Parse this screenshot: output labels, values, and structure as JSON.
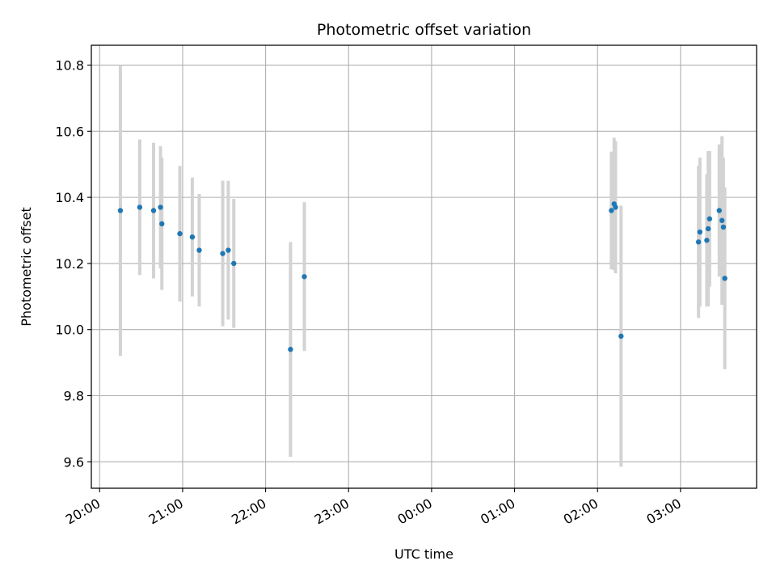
{
  "chart_data": {
    "type": "scatter",
    "title": "Photometric offset variation",
    "xlabel": "UTC time",
    "ylabel": "Photometric offset",
    "x_axis_type": "time",
    "xlim": [
      "19:54",
      "03:55"
    ],
    "ylim": [
      9.52,
      10.86
    ],
    "yticks": [
      9.6,
      9.8,
      10.0,
      10.2,
      10.4,
      10.6,
      10.8
    ],
    "xticks": [
      "20:00",
      "21:00",
      "22:00",
      "23:00",
      "00:00",
      "01:00",
      "02:00",
      "03:00"
    ],
    "grid": true,
    "legend": "none",
    "marker_color": "#1f77b4",
    "errorbar_color": "#d3d3d3",
    "series": [
      {
        "points": [
          {
            "x": "20:15",
            "y": 10.36,
            "err": 0.44
          },
          {
            "x": "20:29",
            "y": 10.37,
            "err": 0.205
          },
          {
            "x": "20:39",
            "y": 10.36,
            "err": 0.205
          },
          {
            "x": "20:44",
            "y": 10.37,
            "err": 0.185
          },
          {
            "x": "20:45",
            "y": 10.32,
            "err": 0.2
          },
          {
            "x": "20:58",
            "y": 10.29,
            "err": 0.205
          },
          {
            "x": "21:07",
            "y": 10.28,
            "err": 0.18
          },
          {
            "x": "21:12",
            "y": 10.24,
            "err": 0.17
          },
          {
            "x": "21:29",
            "y": 10.23,
            "err": 0.22
          },
          {
            "x": "21:33",
            "y": 10.24,
            "err": 0.21
          },
          {
            "x": "21:37",
            "y": 10.2,
            "err": 0.195
          },
          {
            "x": "22:18",
            "y": 9.94,
            "err": 0.325
          },
          {
            "x": "22:28",
            "y": 10.16,
            "err": 0.225
          },
          {
            "x": "02:10",
            "y": 10.36,
            "err": 0.178
          },
          {
            "x": "02:12",
            "y": 10.38,
            "err": 0.2
          },
          {
            "x": "02:13",
            "y": 10.37,
            "err": 0.2
          },
          {
            "x": "02:17",
            "y": 9.98,
            "err": 0.395
          },
          {
            "x": "03:13",
            "y": 10.265,
            "err": 0.23
          },
          {
            "x": "03:14",
            "y": 10.295,
            "err": 0.225
          },
          {
            "x": "03:19",
            "y": 10.27,
            "err": 0.2
          },
          {
            "x": "03:20",
            "y": 10.305,
            "err": 0.235
          },
          {
            "x": "03:21",
            "y": 10.335,
            "err": 0.205
          },
          {
            "x": "03:28",
            "y": 10.36,
            "err": 0.2
          },
          {
            "x": "03:30",
            "y": 10.33,
            "err": 0.255
          },
          {
            "x": "03:31",
            "y": 10.31,
            "err": 0.21
          },
          {
            "x": "03:32",
            "y": 10.155,
            "err": 0.275
          }
        ]
      }
    ]
  }
}
